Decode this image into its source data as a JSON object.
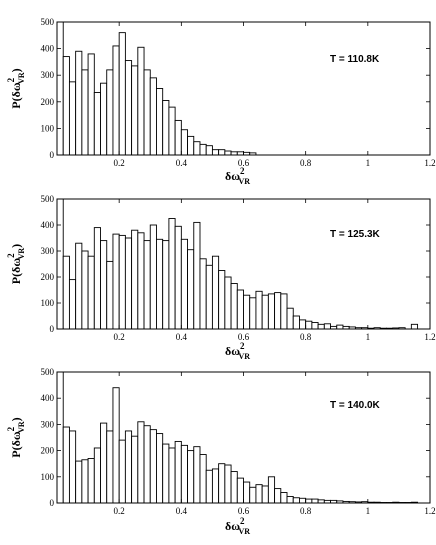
{
  "chart_data": [
    {
      "type": "bar",
      "annotation": "T = 110.8K",
      "x_label": {
        "base": "δω",
        "sup": "2",
        "sub": "VR"
      },
      "y_label": {
        "prefix": "P(δω",
        "sup": "2",
        "sub": "VR",
        "suffix": ")"
      },
      "xlim": [
        0,
        1.2
      ],
      "ylim": [
        0,
        500
      ],
      "xticks": [
        "0.2",
        "0.4",
        "0.6",
        "0.8",
        "1",
        "1.2"
      ],
      "yticks": [
        "0",
        "100",
        "200",
        "300",
        "400",
        "500"
      ],
      "bin_width": 0.02,
      "bin_start": 0.0,
      "values": [
        500,
        370,
        275,
        390,
        320,
        380,
        235,
        270,
        320,
        410,
        460,
        355,
        335,
        405,
        320,
        290,
        250,
        205,
        180,
        130,
        95,
        70,
        50,
        40,
        35,
        20,
        20,
        15,
        12,
        12,
        10,
        8,
        0,
        0,
        0,
        0,
        0,
        0,
        0,
        0,
        0,
        0,
        0,
        0,
        0,
        0,
        0,
        0,
        0,
        0,
        0,
        0,
        0,
        0,
        0,
        0,
        0,
        0,
        0,
        0
      ],
      "grid": false
    },
    {
      "type": "bar",
      "annotation": "T = 125.3K",
      "x_label": {
        "base": "δω",
        "sup": "2",
        "sub": "VR"
      },
      "y_label": {
        "prefix": "P(δω",
        "sup": "2",
        "sub": "VR",
        "suffix": ")"
      },
      "xlim": [
        0,
        1.2
      ],
      "ylim": [
        0,
        500
      ],
      "xticks": [
        "0.2",
        "0.4",
        "0.6",
        "0.8",
        "1",
        "1.2"
      ],
      "yticks": [
        "0",
        "100",
        "200",
        "300",
        "400",
        "500"
      ],
      "bin_width": 0.02,
      "bin_start": 0.0,
      "values": [
        500,
        280,
        190,
        330,
        300,
        280,
        390,
        340,
        260,
        365,
        360,
        350,
        380,
        370,
        340,
        400,
        345,
        340,
        425,
        395,
        345,
        305,
        410,
        270,
        245,
        280,
        225,
        200,
        175,
        150,
        130,
        120,
        145,
        130,
        135,
        140,
        135,
        80,
        50,
        35,
        30,
        25,
        18,
        20,
        10,
        15,
        10,
        8,
        5,
        5,
        3,
        5,
        3,
        3,
        4,
        5,
        0,
        18,
        0,
        0
      ],
      "grid": false
    },
    {
      "type": "bar",
      "annotation": "T = 140.0K",
      "x_label": {
        "base": "δω",
        "sup": "2",
        "sub": "VR"
      },
      "y_label": {
        "prefix": "P(δω",
        "sup": "2",
        "sub": "VR",
        "suffix": ")"
      },
      "xlim": [
        0,
        1.2
      ],
      "ylim": [
        0,
        500
      ],
      "xticks": [
        "0.2",
        "0.4",
        "0.6",
        "0.8",
        "1",
        "1.2"
      ],
      "yticks": [
        "0",
        "100",
        "200",
        "300",
        "400",
        "500"
      ],
      "bin_width": 0.02,
      "bin_start": 0.0,
      "values": [
        500,
        290,
        275,
        160,
        165,
        170,
        210,
        305,
        275,
        440,
        240,
        275,
        255,
        310,
        295,
        280,
        265,
        225,
        210,
        235,
        220,
        200,
        215,
        185,
        125,
        130,
        150,
        145,
        120,
        95,
        80,
        60,
        70,
        65,
        100,
        55,
        40,
        25,
        20,
        18,
        15,
        15,
        12,
        10,
        10,
        8,
        6,
        5,
        4,
        5,
        3,
        3,
        2,
        2,
        3,
        2,
        2,
        3,
        0,
        0
      ],
      "grid": false
    }
  ]
}
